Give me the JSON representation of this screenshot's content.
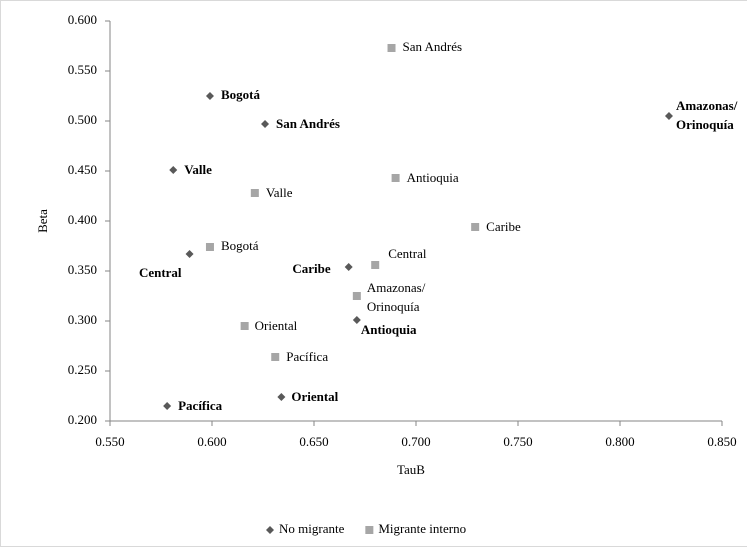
{
  "chart_data": {
    "type": "scatter",
    "x_label": "TauB",
    "y_label": "Beta",
    "xlim": [
      0.55,
      0.85
    ],
    "xticks": [
      {
        "value": 0.55,
        "label": "0.550"
      },
      {
        "value": 0.6,
        "label": "0.600"
      },
      {
        "value": 0.65,
        "label": "0.650"
      },
      {
        "value": 0.7,
        "label": "0.700"
      },
      {
        "value": 0.75,
        "label": "0.750"
      },
      {
        "value": 0.8,
        "label": "0.800"
      },
      {
        "value": 0.85,
        "label": "0.850"
      }
    ],
    "ylim": [
      0.2,
      0.6
    ],
    "yticks": [
      {
        "value": 0.2,
        "label": "0.200"
      },
      {
        "value": 0.25,
        "label": "0.250"
      },
      {
        "value": 0.3,
        "label": "0.300"
      },
      {
        "value": 0.35,
        "label": "0.350"
      },
      {
        "value": 0.4,
        "label": "0.400"
      },
      {
        "value": 0.45,
        "label": "0.450"
      },
      {
        "value": 0.5,
        "label": "0.500"
      },
      {
        "value": 0.55,
        "label": "0.550"
      },
      {
        "value": 0.6,
        "label": "0.600"
      }
    ],
    "grid": false,
    "legend": "bottom",
    "series": [
      {
        "name": "No migrante",
        "color": "#595959",
        "marker": "diamond",
        "labels": [
          [
            "Bogotá"
          ],
          [
            "San Andrés"
          ],
          [
            "Amazonas/",
            "Orinoquía"
          ],
          [
            "Valle"
          ],
          [
            "Central"
          ],
          [
            "Caribe"
          ],
          [
            "Antioquia"
          ],
          [
            "Oriental"
          ],
          [
            "Pacífica"
          ]
        ],
        "x": [
          0.599,
          0.626,
          0.824,
          0.581,
          0.589,
          0.667,
          0.671,
          0.634,
          0.578
        ],
        "values": [
          0.525,
          0.497,
          0.505,
          0.451,
          0.367,
          0.354,
          0.301,
          0.224,
          0.215
        ]
      },
      {
        "name": "Migrante interno",
        "color": "#a6a6a6",
        "marker": "square",
        "labels": [
          [
            "San Andrés"
          ],
          [
            "Antioquia"
          ],
          [
            "Valle"
          ],
          [
            "Caribe"
          ],
          [
            "Bogotá"
          ],
          [
            "Central"
          ],
          [
            "Amazonas/",
            "Orinoquía"
          ],
          [
            "Oriental"
          ],
          [
            "Pacífica"
          ]
        ],
        "x": [
          0.688,
          0.69,
          0.621,
          0.729,
          0.599,
          0.68,
          0.671,
          0.616,
          0.631
        ],
        "values": [
          0.573,
          0.443,
          0.428,
          0.394,
          0.374,
          0.356,
          0.325,
          0.295,
          0.264
        ]
      }
    ]
  }
}
